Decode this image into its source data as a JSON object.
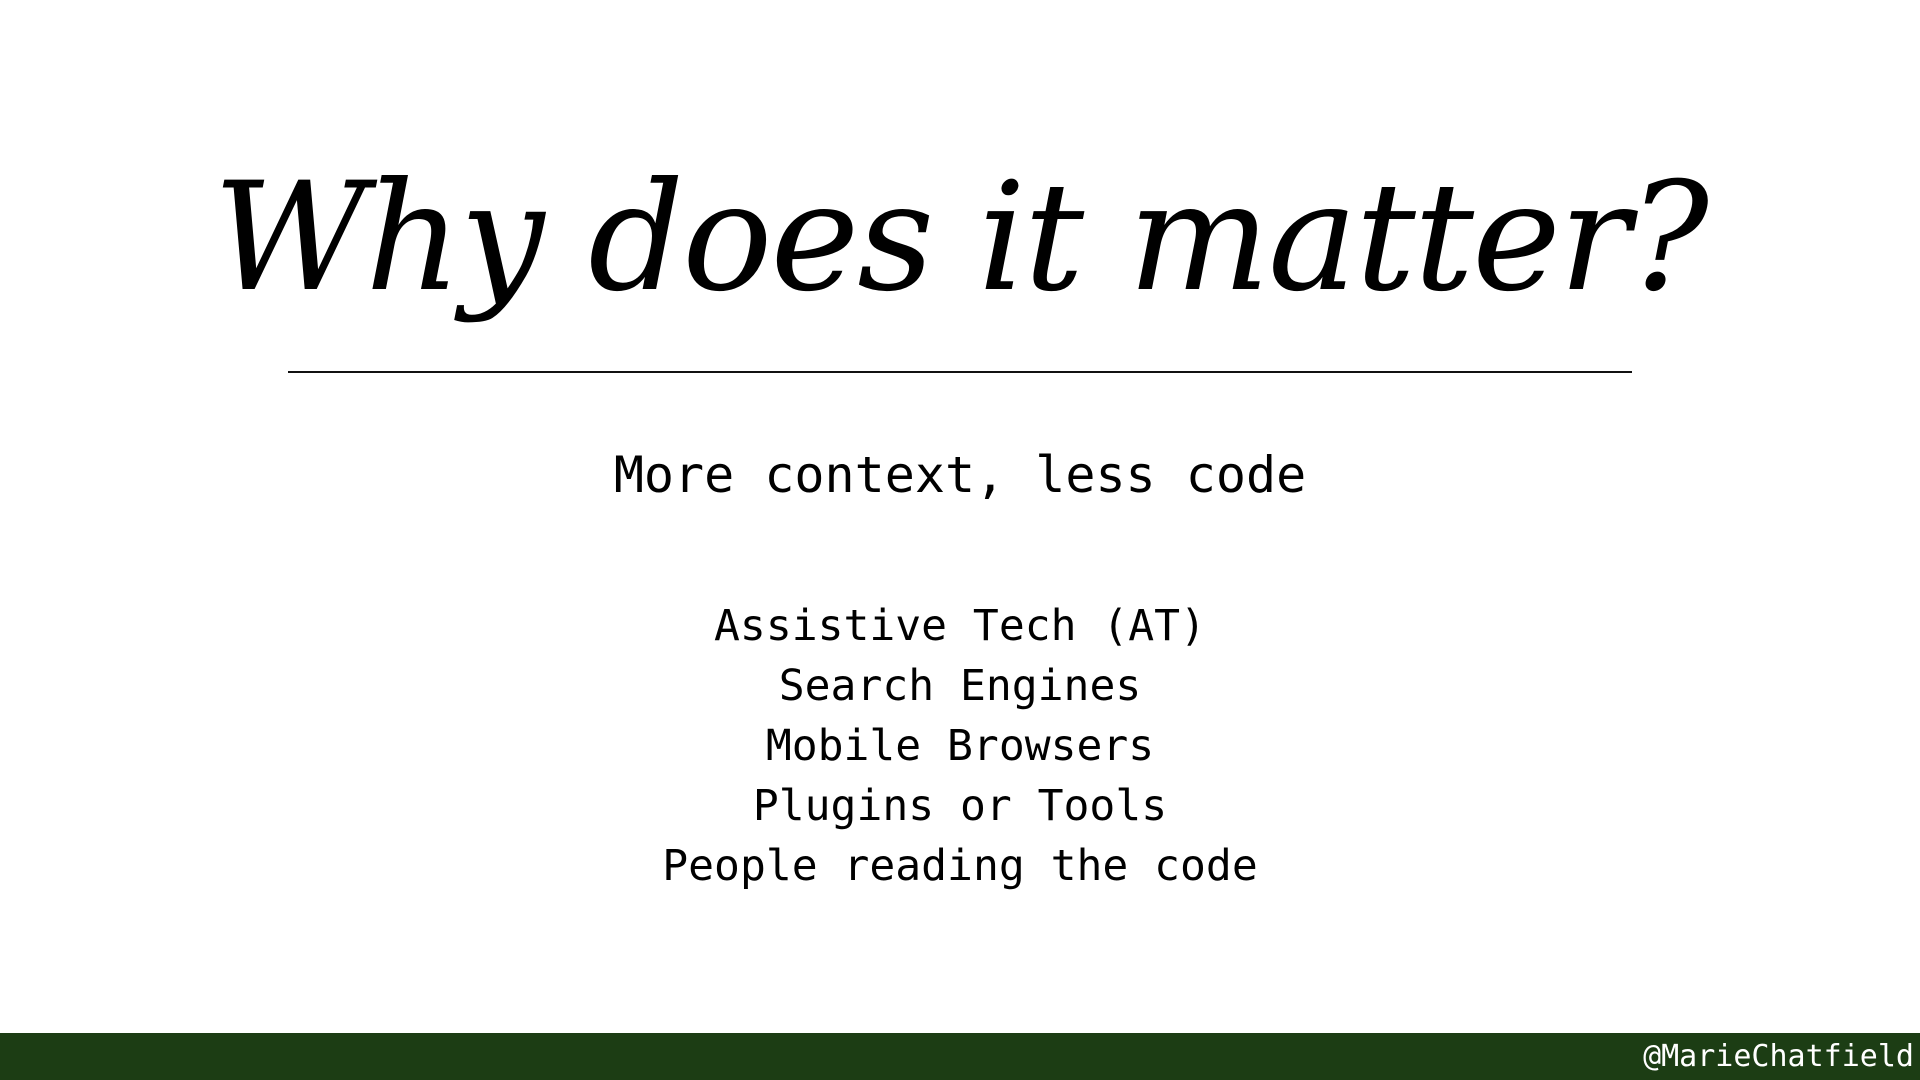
{
  "slide": {
    "title": "Why does it matter?",
    "subtitle": "More context, less code",
    "items": [
      "Assistive Tech (AT)",
      "Search Engines",
      "Mobile Browsers",
      "Plugins or Tools",
      "People reading the code"
    ]
  },
  "footer": {
    "handle": "@MarieChatfield"
  },
  "colors": {
    "background": "#ffffff",
    "text": "#000000",
    "footer_bar": "#1c3d14",
    "footer_text": "#ffffff"
  }
}
